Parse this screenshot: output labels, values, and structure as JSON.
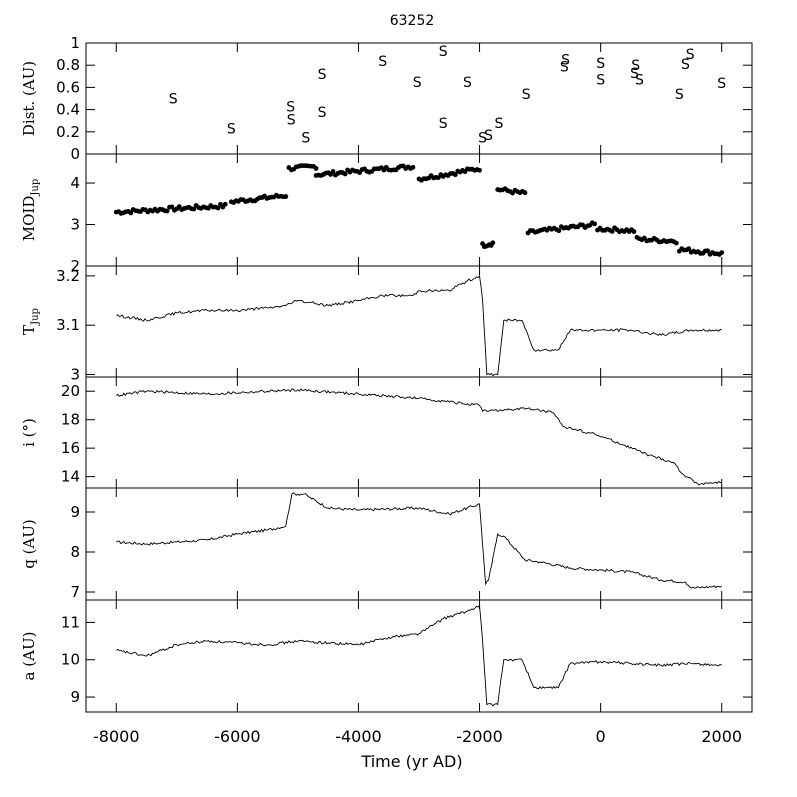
{
  "title": "63252",
  "xlabel": "Time (yr AD)",
  "chart_data": [
    {
      "type": "scatter",
      "ylabel": "Dist. (AU)",
      "marker": "S",
      "ylim": [
        0,
        1
      ],
      "yticks": [
        "0",
        "0.2",
        "0.4",
        "0.6",
        "0.8",
        "1"
      ],
      "xlim": [
        -8500,
        2500
      ],
      "points": [
        [
          -7060,
          0.5
        ],
        [
          -6100,
          0.23
        ],
        [
          -5120,
          0.43
        ],
        [
          -5110,
          0.31
        ],
        [
          -4870,
          0.15
        ],
        [
          -4600,
          0.72
        ],
        [
          -4600,
          0.38
        ],
        [
          -3600,
          0.84
        ],
        [
          -2600,
          0.93
        ],
        [
          -3030,
          0.65
        ],
        [
          -2600,
          0.28
        ],
        [
          -2200,
          0.65
        ],
        [
          -1950,
          0.15
        ],
        [
          -1850,
          0.17
        ],
        [
          -1680,
          0.28
        ],
        [
          -1230,
          0.54
        ],
        [
          -600,
          0.79
        ],
        [
          -580,
          0.85
        ],
        [
          0,
          0.82
        ],
        [
          0,
          0.67
        ],
        [
          560,
          0.73
        ],
        [
          580,
          0.8
        ],
        [
          640,
          0.67
        ],
        [
          1300,
          0.54
        ],
        [
          1400,
          0.81
        ],
        [
          1480,
          0.9
        ],
        [
          2000,
          0.64
        ]
      ]
    },
    {
      "type": "scatter",
      "ylabel": "MOID",
      "ylabel_sub": "Jup",
      "ylim": [
        2,
        4.7
      ],
      "yticks": [
        "2",
        "3",
        "4"
      ],
      "segments": [
        {
          "x": [
            -8000,
            -6200
          ],
          "y": [
            3.3,
            3.45
          ]
        },
        {
          "x": [
            -6100,
            -5200
          ],
          "y": [
            3.55,
            3.7
          ]
        },
        {
          "x": [
            -5150,
            -4700
          ],
          "y": [
            4.35,
            4.4
          ]
        },
        {
          "x": [
            -4700,
            -3100
          ],
          "y": [
            4.2,
            4.4
          ]
        },
        {
          "x": [
            -3000,
            -2000
          ],
          "y": [
            4.1,
            4.35
          ]
        },
        {
          "x": [
            -1950,
            -1780
          ],
          "y": [
            2.5,
            2.55
          ]
        },
        {
          "x": [
            -1700,
            -1250
          ],
          "y": [
            3.85,
            3.75
          ]
        },
        {
          "x": [
            -1200,
            -100
          ],
          "y": [
            2.8,
            3.0
          ]
        },
        {
          "x": [
            -50,
            550
          ],
          "y": [
            2.9,
            2.85
          ]
        },
        {
          "x": [
            600,
            1250
          ],
          "y": [
            2.65,
            2.6
          ]
        },
        {
          "x": [
            1300,
            2000
          ],
          "y": [
            2.4,
            2.3
          ]
        }
      ]
    },
    {
      "type": "line",
      "ylabel": "T",
      "ylabel_sub": "Jup",
      "ylim": [
        2.995,
        3.22
      ],
      "yticks": [
        "3",
        "3.1",
        "3.2"
      ],
      "x": [
        -8000,
        -7500,
        -7000,
        -6500,
        -6000,
        -5500,
        -5200,
        -5000,
        -4500,
        -4000,
        -3600,
        -3100,
        -3000,
        -2500,
        -2200,
        -2000,
        -1950,
        -1880,
        -1700,
        -1600,
        -1300,
        -1100,
        -700,
        -500,
        0,
        500,
        1000,
        1500,
        2000
      ],
      "values": [
        3.12,
        3.11,
        3.125,
        3.13,
        3.13,
        3.135,
        3.14,
        3.15,
        3.14,
        3.15,
        3.16,
        3.16,
        3.17,
        3.17,
        3.19,
        3.2,
        3.15,
        3.0,
        3.0,
        3.11,
        3.11,
        3.05,
        3.05,
        3.09,
        3.09,
        3.09,
        3.08,
        3.09,
        3.09
      ]
    },
    {
      "type": "line",
      "ylabel": "i (°)",
      "ylim": [
        13.2,
        21
      ],
      "yticks": [
        "14",
        "16",
        "18",
        "20"
      ],
      "x": [
        -8000,
        -7500,
        -6500,
        -5500,
        -5000,
        -4000,
        -3000,
        -2000,
        -1950,
        -1500,
        -1200,
        -800,
        -600,
        -100,
        400,
        800,
        1200,
        1350,
        1600,
        2000
      ],
      "values": [
        19.7,
        20.0,
        19.8,
        20.0,
        20.1,
        19.8,
        19.5,
        19.0,
        18.6,
        18.7,
        18.8,
        18.5,
        17.5,
        17.0,
        16.2,
        15.5,
        15.0,
        14.2,
        13.5,
        13.6
      ]
    },
    {
      "type": "line",
      "ylabel": "q (AU)",
      "ylim": [
        6.8,
        9.6
      ],
      "yticks": [
        "7",
        "8",
        "9"
      ],
      "x": [
        -8000,
        -7500,
        -7000,
        -6500,
        -6000,
        -5500,
        -5200,
        -5100,
        -4900,
        -4500,
        -4000,
        -3000,
        -2500,
        -2000,
        -1900,
        -1850,
        -1700,
        -1600,
        -1250,
        -1000,
        -500,
        0,
        500,
        1000,
        1400,
        1500,
        2000
      ],
      "values": [
        8.25,
        8.2,
        8.25,
        8.3,
        8.45,
        8.55,
        8.65,
        9.45,
        9.45,
        9.1,
        9.05,
        9.1,
        8.95,
        9.2,
        7.2,
        7.3,
        8.45,
        8.4,
        7.8,
        7.75,
        7.6,
        7.55,
        7.5,
        7.3,
        7.25,
        7.1,
        7.15
      ]
    },
    {
      "type": "line",
      "ylabel": "a (AU)",
      "ylim": [
        8.6,
        11.6
      ],
      "yticks": [
        "9",
        "10",
        "11"
      ],
      "xticks": [
        "-8000",
        "-6000",
        "-4000",
        "-2000",
        "0",
        "2000"
      ],
      "x": [
        -8000,
        -7500,
        -7000,
        -6500,
        -6000,
        -5500,
        -5000,
        -4500,
        -4000,
        -3500,
        -3000,
        -2600,
        -2200,
        -2000,
        -1950,
        -1880,
        -1700,
        -1600,
        -1300,
        -1100,
        -700,
        -500,
        0,
        500,
        1000,
        1500,
        2000
      ],
      "values": [
        10.25,
        10.1,
        10.4,
        10.5,
        10.45,
        10.4,
        10.5,
        10.45,
        10.4,
        10.6,
        10.7,
        11.1,
        11.3,
        11.45,
        10.5,
        8.8,
        8.8,
        10.0,
        10.0,
        9.25,
        9.25,
        9.9,
        9.95,
        9.9,
        9.85,
        9.9,
        9.85
      ]
    }
  ]
}
